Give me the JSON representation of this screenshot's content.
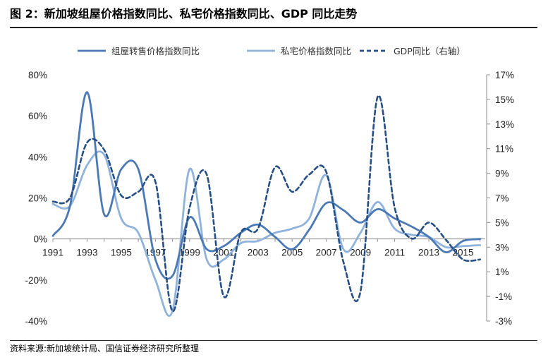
{
  "figure": {
    "title": "图 2：新加坡组屋价格指数同比、私宅价格指数同比、GDP 同比走势",
    "source": "资料来源:新加坡统计局、国信证券经济研究所整理"
  },
  "chart_data": {
    "type": "line",
    "x_tick_labels": [
      "1991",
      "1993",
      "1995",
      "1997",
      "1999",
      "2001",
      "2003",
      "2005",
      "2007",
      "2009",
      "2011",
      "2013",
      "2015"
    ],
    "xlim": [
      1991,
      2016.3
    ],
    "y_left": {
      "ylim": [
        -40,
        80
      ],
      "ticks": [
        -40,
        -20,
        0,
        20,
        40,
        60,
        80
      ],
      "tick_labels": [
        "-40%",
        "-20%",
        "0%",
        "20%",
        "40%",
        "60%",
        "80%"
      ]
    },
    "y_right": {
      "ylim": [
        -3,
        17
      ],
      "ticks": [
        -3,
        -1,
        1,
        3,
        5,
        7,
        9,
        11,
        13,
        15,
        17
      ],
      "tick_labels": [
        "-3%",
        "-1%",
        "1%",
        "3%",
        "5%",
        "7%",
        "9%",
        "11%",
        "13%",
        "15%",
        "17%"
      ]
    },
    "legend_position": "top",
    "series": [
      {
        "name": "组屋转售价格指数同比",
        "axis": "left",
        "color": "#4a79b5",
        "style": "solid",
        "x": [
          1991,
          1992,
          1993,
          1994,
          1995,
          1996,
          1997,
          1998,
          1999,
          2000,
          2001,
          2002,
          2003,
          2004,
          2005,
          2006,
          2007,
          2008,
          2009,
          2010,
          2011,
          2012,
          2013,
          2014,
          2015,
          2016
        ],
        "values": [
          1.5,
          16,
          71.5,
          12,
          34,
          34,
          -10,
          -18,
          10.5,
          -5,
          -3.5,
          3,
          7,
          1,
          -5,
          4.5,
          17.5,
          14,
          8,
          14.5,
          10,
          6,
          1,
          -6.5,
          -1,
          0
        ]
      },
      {
        "name": "私宅价格指数同比",
        "axis": "left",
        "color": "#8fb3dc",
        "style": "solid",
        "x": [
          1991,
          1992,
          1993,
          1994,
          1995,
          1996,
          1997,
          1998,
          1999,
          2000,
          2001,
          2002,
          2003,
          2004,
          2005,
          2006,
          2007,
          2008,
          2009,
          2010,
          2011,
          2012,
          2013,
          2014,
          2015,
          2016
        ],
        "values": [
          17,
          16,
          36,
          41,
          10,
          3,
          -20,
          -35,
          34,
          -10,
          -10,
          -2,
          -1,
          3,
          5,
          10,
          31,
          -5,
          3,
          18,
          5,
          2,
          1,
          -4,
          -3.5,
          -3
        ]
      },
      {
        "name": "GDP同比（右轴）",
        "axis": "right",
        "color": "#264f86",
        "style": "dashed",
        "x": [
          1991,
          1992,
          1993,
          1994,
          1995,
          1996,
          1997,
          1998,
          1999,
          2000,
          2001,
          2002,
          2003,
          2004,
          2005,
          2006,
          2007,
          2008,
          2009,
          2010,
          2011,
          2012,
          2013,
          2014,
          2015,
          2016
        ],
        "values": [
          6.7,
          7,
          11.5,
          10.9,
          7.2,
          7.5,
          8.3,
          -2.2,
          6.2,
          8.9,
          -1,
          4.2,
          4.5,
          9.5,
          7.5,
          8.9,
          9.1,
          1.8,
          -0.6,
          15.2,
          6.2,
          3.7,
          5,
          3.6,
          2,
          2
        ]
      }
    ]
  }
}
